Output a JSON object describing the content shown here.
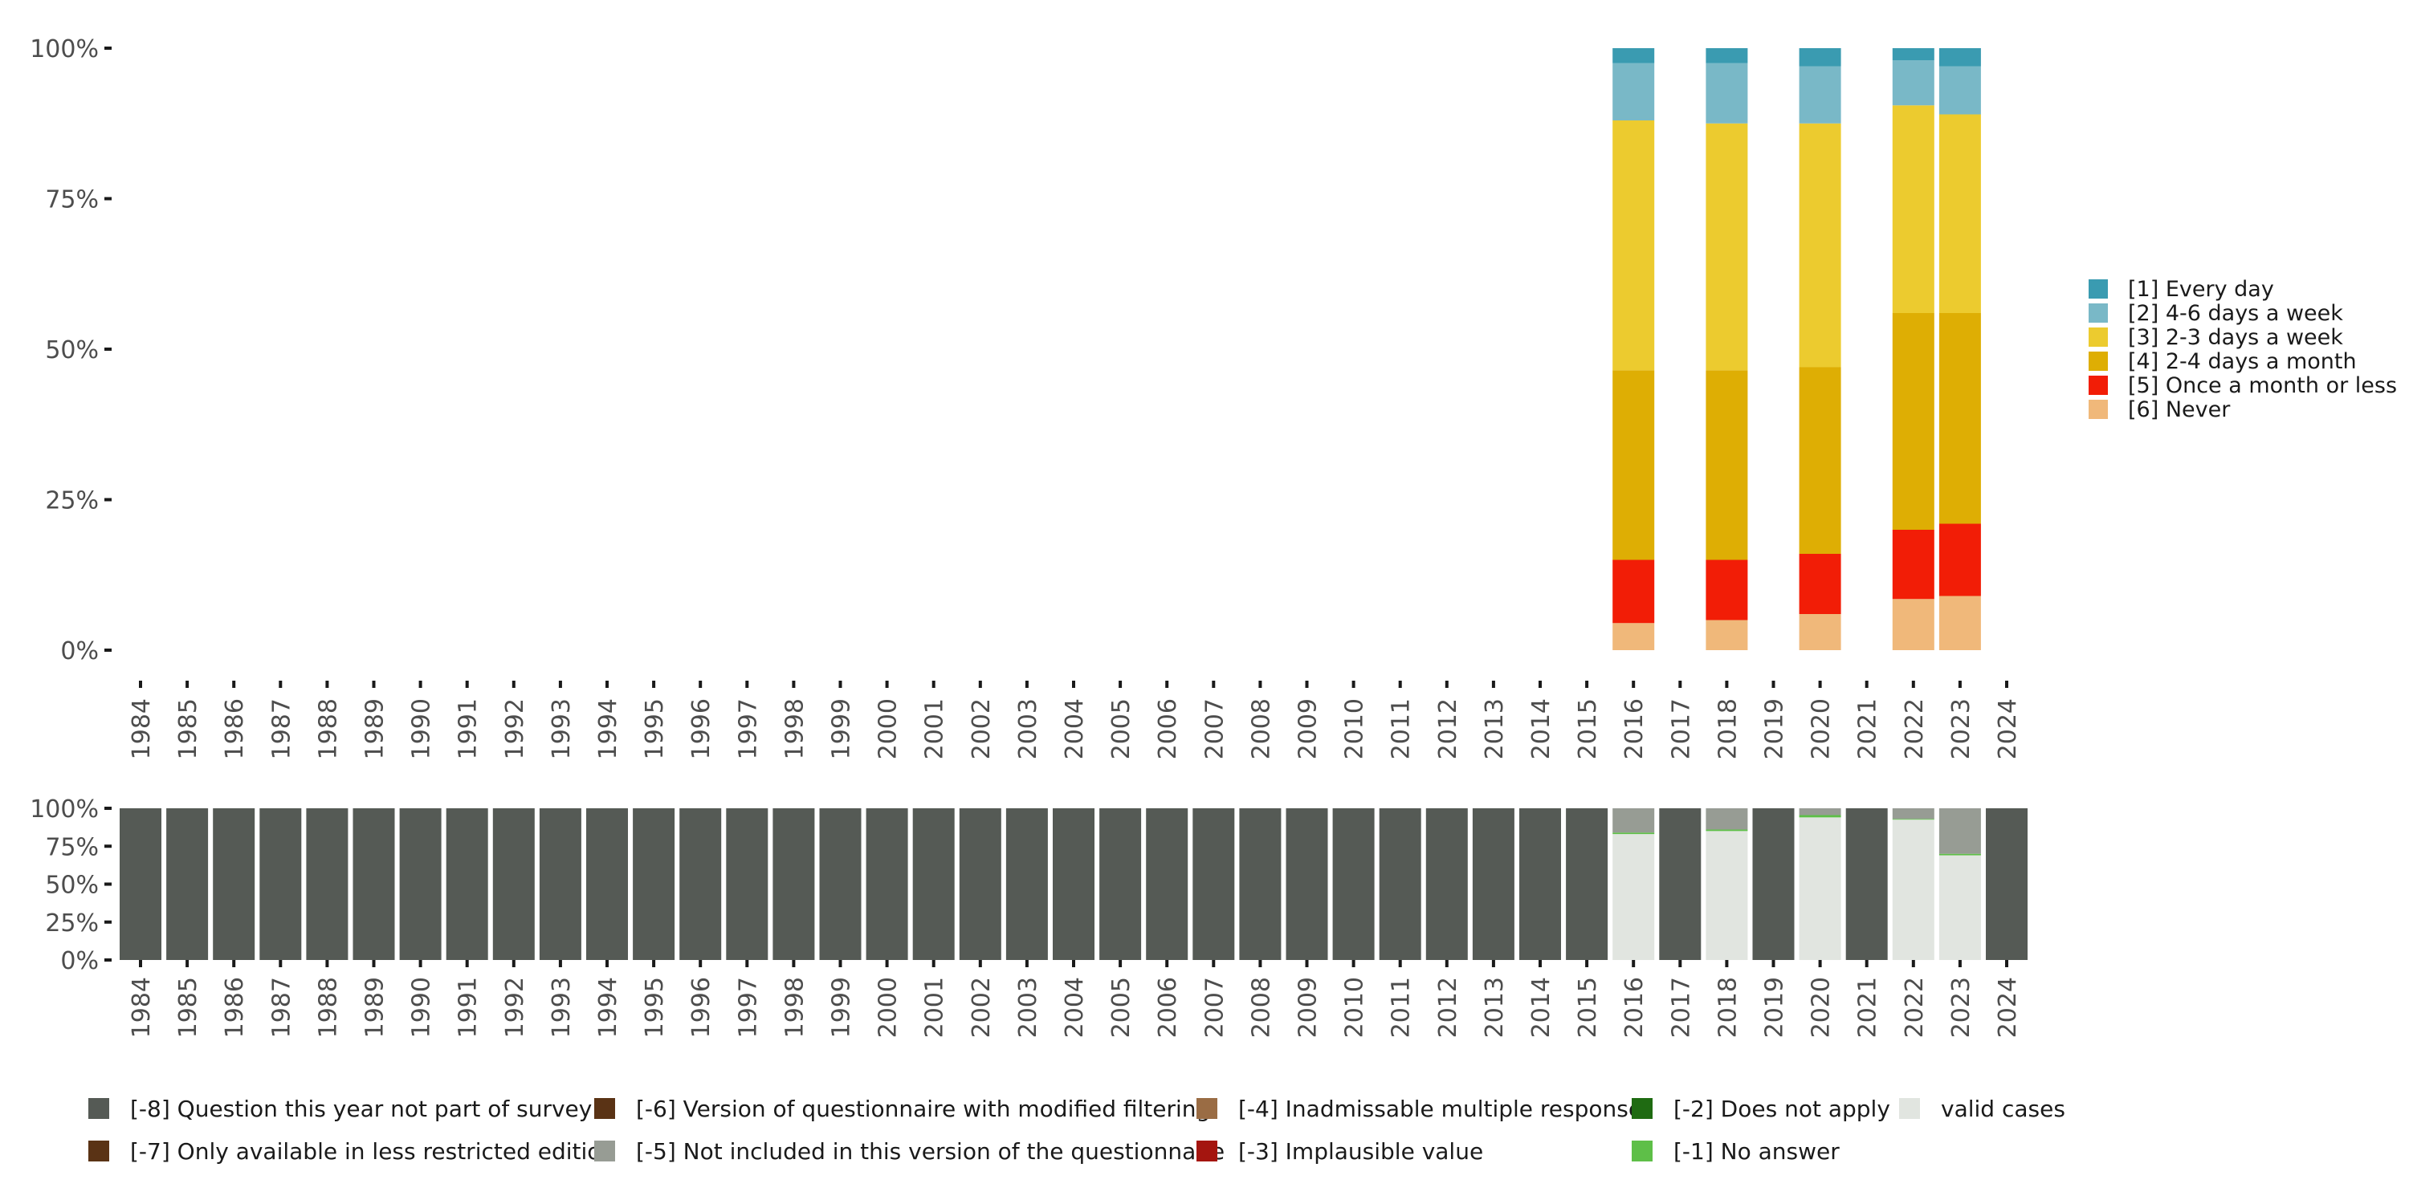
{
  "chart_data": [
    {
      "type": "bar",
      "stacked": true,
      "panel": "top",
      "categories": [
        "1984",
        "1985",
        "1986",
        "1987",
        "1988",
        "1989",
        "1990",
        "1991",
        "1992",
        "1993",
        "1994",
        "1995",
        "1996",
        "1997",
        "1998",
        "1999",
        "2000",
        "2001",
        "2002",
        "2003",
        "2004",
        "2005",
        "2006",
        "2007",
        "2008",
        "2009",
        "2010",
        "2011",
        "2012",
        "2013",
        "2014",
        "2015",
        "2016",
        "2017",
        "2018",
        "2019",
        "2020",
        "2021",
        "2022",
        "2023",
        "2024"
      ],
      "ylim": [
        0,
        100
      ],
      "yticks": [
        "0%",
        "25%",
        "50%",
        "75%",
        "100%"
      ],
      "legend_position": "right",
      "series": [
        {
          "name": "[6] Never",
          "color": "#f0b87a",
          "values": {
            "2016": 4.5,
            "2018": 5,
            "2020": 6,
            "2022": 8.5,
            "2023": 9
          }
        },
        {
          "name": "[5] Once a month or less",
          "color": "#f21d06",
          "values": {
            "2016": 10.5,
            "2018": 10,
            "2020": 10,
            "2022": 11.5,
            "2023": 12
          }
        },
        {
          "name": "[4] 2-4 days a month",
          "color": "#deae04",
          "values": {
            "2016": 31.5,
            "2018": 31.5,
            "2020": 31,
            "2022": 36,
            "2023": 35
          }
        },
        {
          "name": "[3] 2-3 days a week",
          "color": "#eccb2f",
          "values": {
            "2016": 41.5,
            "2018": 41,
            "2020": 40.5,
            "2022": 34.5,
            "2023": 33
          }
        },
        {
          "name": "[2] 4-6 days a week",
          "color": "#79b8c7",
          "values": {
            "2016": 9.5,
            "2018": 10,
            "2020": 9.5,
            "2022": 7.5,
            "2023": 8
          }
        },
        {
          "name": "[1] Every day",
          "color": "#3a9bb1",
          "values": {
            "2016": 2.5,
            "2018": 2.5,
            "2020": 3,
            "2022": 2,
            "2023": 3
          }
        }
      ],
      "legend_order": [
        "[1] Every day",
        "[2] 4-6 days a week",
        "[3] 2-3 days a week",
        "[4] 2-4 days a month",
        "[5] Once a month or less",
        "[6] Never"
      ]
    },
    {
      "type": "bar",
      "stacked": true,
      "panel": "bottom",
      "categories": [
        "1984",
        "1985",
        "1986",
        "1987",
        "1988",
        "1989",
        "1990",
        "1991",
        "1992",
        "1993",
        "1994",
        "1995",
        "1996",
        "1997",
        "1998",
        "1999",
        "2000",
        "2001",
        "2002",
        "2003",
        "2004",
        "2005",
        "2006",
        "2007",
        "2008",
        "2009",
        "2010",
        "2011",
        "2012",
        "2013",
        "2014",
        "2015",
        "2016",
        "2017",
        "2018",
        "2019",
        "2020",
        "2021",
        "2022",
        "2023",
        "2024"
      ],
      "ylim": [
        0,
        100
      ],
      "yticks": [
        "0%",
        "25%",
        "50%",
        "75%",
        "100%"
      ],
      "legend_position": "bottom",
      "series": [
        {
          "name": "valid cases",
          "color": "#e1e5e0",
          "values": {
            "2016": 83,
            "2018": 85,
            "2020": 94,
            "2022": 92.5,
            "2023": 69
          }
        },
        {
          "name": "[-1] No answer",
          "color": "#5ebf48",
          "values": {
            "2016": 1,
            "2018": 1,
            "2020": 1.5,
            "2022": 0.5,
            "2023": 1
          }
        },
        {
          "name": "[-5] Not included in this version of the questionnaire",
          "color": "#979c94",
          "values": {
            "2016": 16,
            "2018": 14,
            "2020": 4.5,
            "2022": 7,
            "2023": 30
          }
        },
        {
          "name": "[-8] Question this year not part of survey",
          "color": "#555a55",
          "values": {
            "1984": 100,
            "1985": 100,
            "1986": 100,
            "1987": 100,
            "1988": 100,
            "1989": 100,
            "1990": 100,
            "1991": 100,
            "1992": 100,
            "1993": 100,
            "1994": 100,
            "1995": 100,
            "1996": 100,
            "1997": 100,
            "1998": 100,
            "1999": 100,
            "2000": 100,
            "2001": 100,
            "2002": 100,
            "2003": 100,
            "2004": 100,
            "2005": 100,
            "2006": 100,
            "2007": 100,
            "2008": 100,
            "2009": 100,
            "2010": 100,
            "2011": 100,
            "2012": 100,
            "2013": 100,
            "2014": 100,
            "2015": 100,
            "2017": 100,
            "2019": 100,
            "2021": 100,
            "2024": 100
          }
        }
      ],
      "legend_items": [
        {
          "name": "[-8] Question this year not part of survey",
          "color": "#555a55"
        },
        {
          "name": "[-7] Only available in less restricted edition",
          "color": "#5a3315"
        },
        {
          "name": "[-6] Version of questionnaire with modified filtering",
          "color": "#5a3315"
        },
        {
          "name": "[-5] Not included in this version of the questionnaire",
          "color": "#979c94"
        },
        {
          "name": "[-4] Inadmissable multiple response",
          "color": "#9a6c44"
        },
        {
          "name": "[-3] Implausible value",
          "color": "#a4150f"
        },
        {
          "name": "[-2] Does not apply",
          "color": "#1f6b12"
        },
        {
          "name": "[-1] No answer",
          "color": "#5ebf48"
        },
        {
          "name": "valid cases",
          "color": "#e1e5e0"
        }
      ]
    }
  ]
}
